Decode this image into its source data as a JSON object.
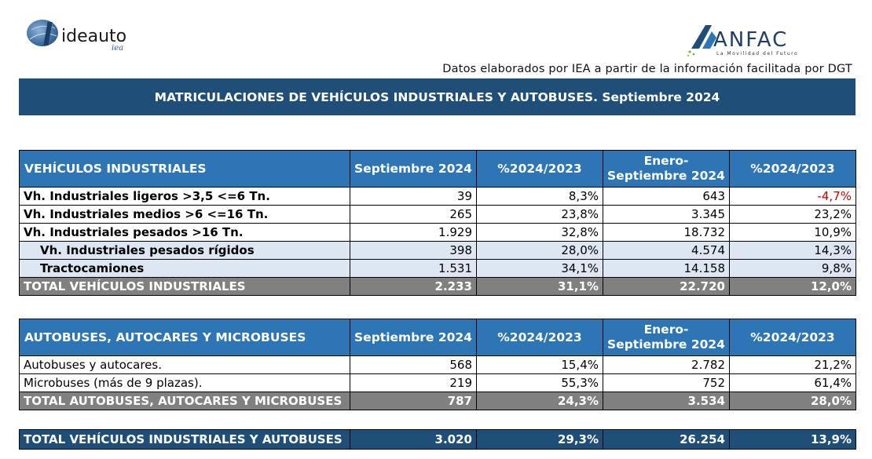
{
  "logos": {
    "left": "ideauto",
    "left_sub": "iea",
    "right": "ANFAC",
    "right_tagline": "La Movilidad del Futuro"
  },
  "source_note": "Datos elaborados por IEA a partir de la información facilitada por DGT",
  "title": "MATRICULACIONES DE VEHÍCULOS INDUSTRIALES Y AUTOBUSES.  Septiembre 2024",
  "industriales": {
    "headers": [
      "VEHÍCULOS INDUSTRIALES",
      "Septiembre 2024",
      "%2024/2023",
      "Enero-\nSeptiembre 2024",
      "%2024/2023"
    ],
    "rows": [
      {
        "label": "Vh. Industriales ligeros >3,5 <=6 Tn.",
        "sep": "39",
        "pct": "8,3%",
        "ytd": "643",
        "ytd_pct": "-4,7%"
      },
      {
        "label": "Vh. Industriales medios >6  <=16 Tn.",
        "sep": "265",
        "pct": "23,8%",
        "ytd": "3.345",
        "ytd_pct": "23,2%"
      },
      {
        "label": "Vh. Industriales  pesados >16 Tn.",
        "sep": "1.929",
        "pct": "32,8%",
        "ytd": "18.732",
        "ytd_pct": "10,9%"
      },
      {
        "label": "Vh. Industriales pesados rígidos",
        "sep": "398",
        "pct": "28,0%",
        "ytd": "4.574",
        "ytd_pct": "14,3%"
      },
      {
        "label": "Tractocamiones",
        "sep": "1.531",
        "pct": "34,1%",
        "ytd": "14.158",
        "ytd_pct": "9,8%"
      },
      {
        "label": "TOTAL VEHÍCULOS INDUSTRIALES",
        "sep": "2.233",
        "pct": "31,1%",
        "ytd": "22.720",
        "ytd_pct": "12,0%"
      }
    ]
  },
  "autobuses": {
    "headers": [
      "AUTOBUSES, AUTOCARES Y MICROBUSES",
      "Septiembre 2024",
      "%2024/2023",
      "Enero-\nSeptiembre 2024",
      "%2024/2023"
    ],
    "rows": [
      {
        "label": "Autobuses y autocares.",
        "sep": "568",
        "pct": "15,4%",
        "ytd": "2.782",
        "ytd_pct": "21,2%"
      },
      {
        "label": "Microbuses (más de 9 plazas).",
        "sep": "219",
        "pct": "55,3%",
        "ytd": "752",
        "ytd_pct": "61,4%"
      },
      {
        "label": "TOTAL AUTOBUSES, AUTOCARES Y MICROBUSES",
        "sep": "787",
        "pct": "24,3%",
        "ytd": "3.534",
        "ytd_pct": "28,0%"
      }
    ]
  },
  "grand_total": {
    "label": "TOTAL VEHÍCULOS INDUSTRIALES Y AUTOBUSES",
    "sep": "3.020",
    "pct": "29,3%",
    "ytd": "26.254",
    "ytd_pct": "13,9%"
  },
  "colors": {
    "banner": "#1f4e79",
    "header": "#2e75b6",
    "subrow": "#dde7f3",
    "total": "#808080",
    "negative": "#c00000"
  }
}
